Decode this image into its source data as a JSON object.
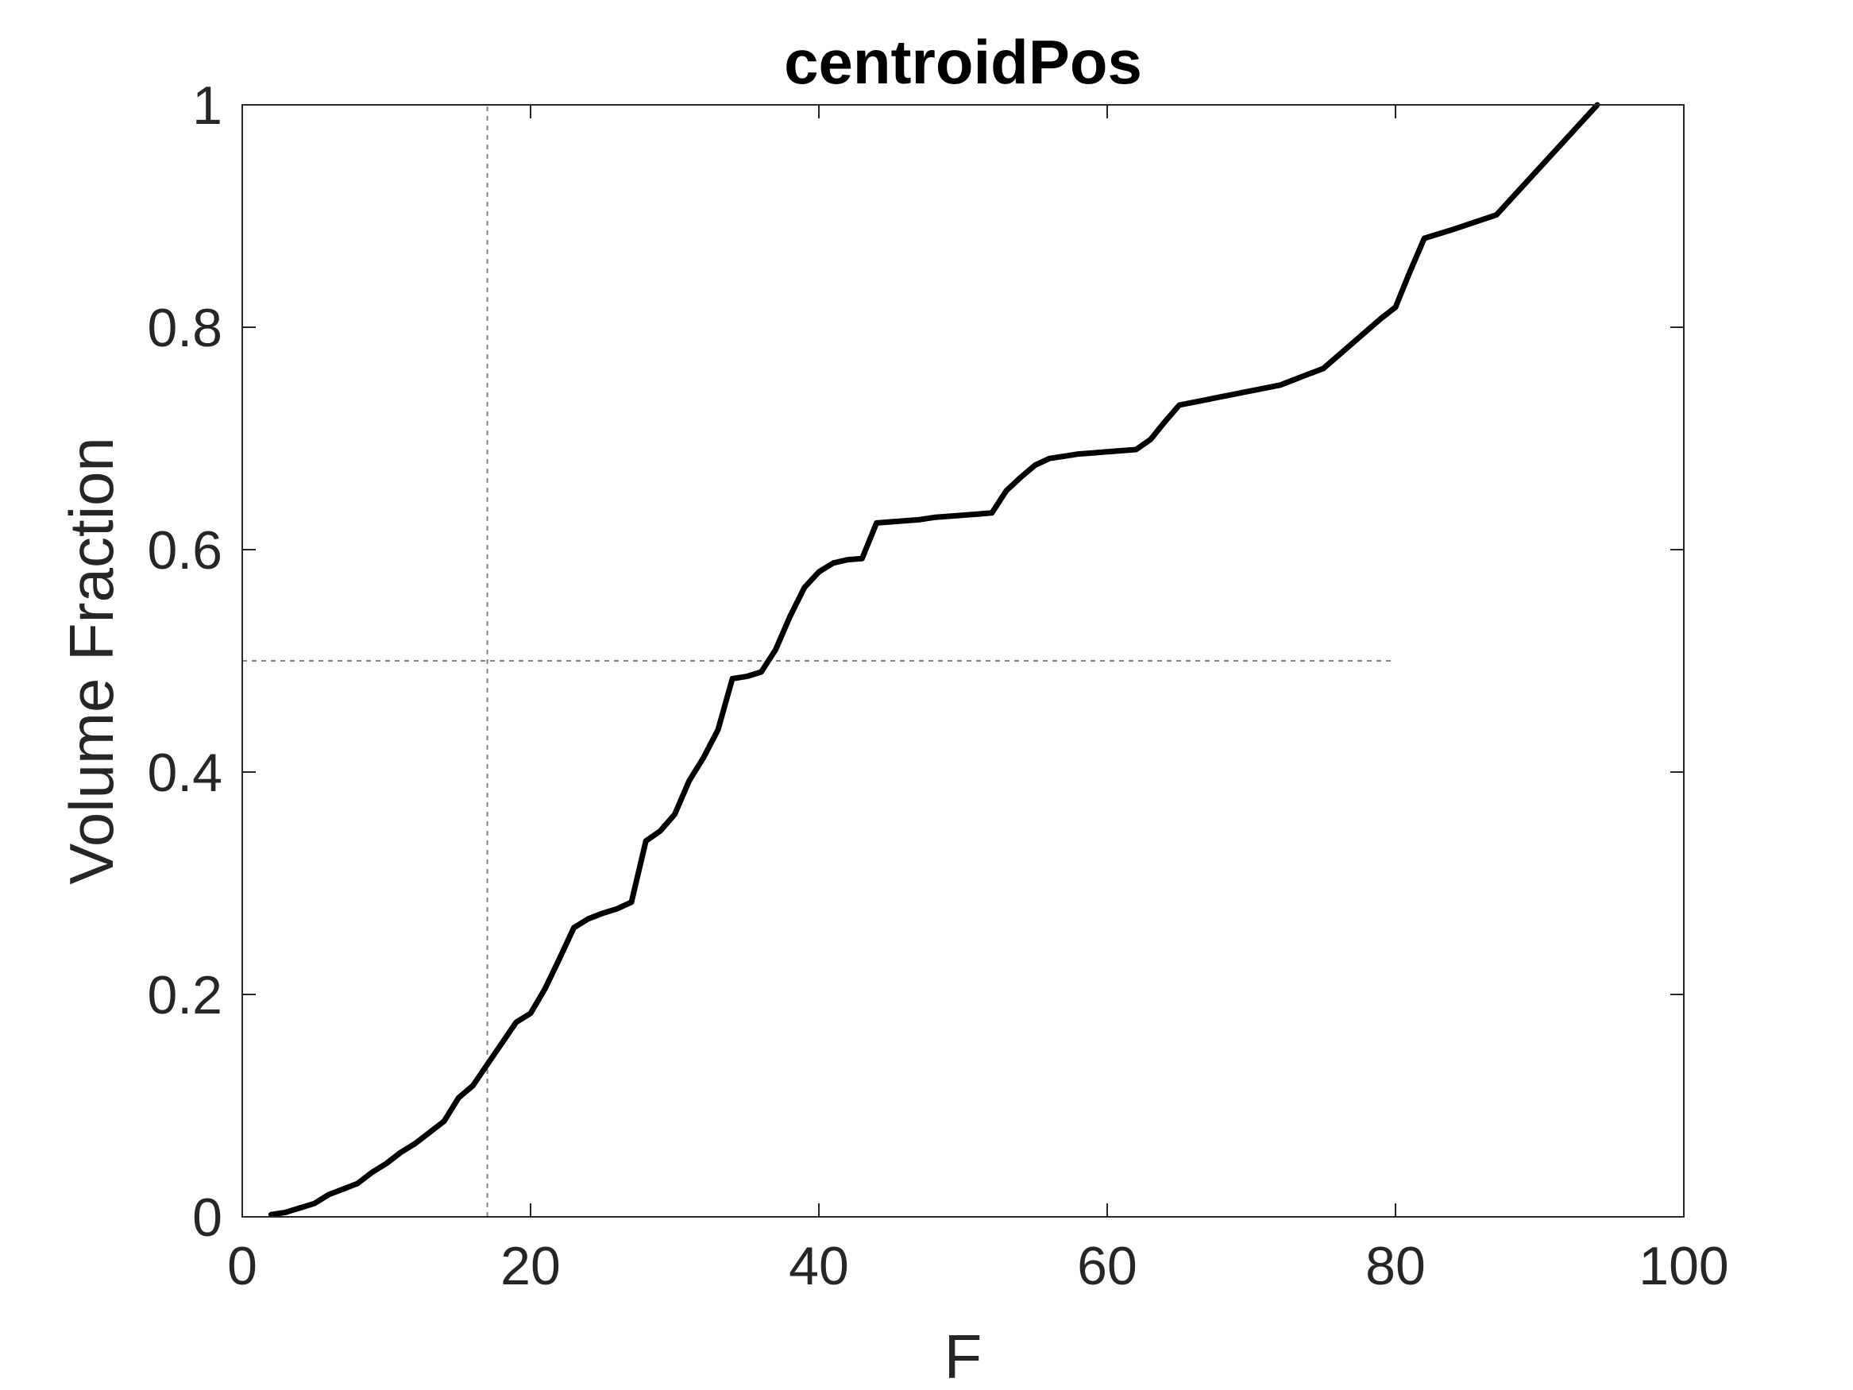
{
  "chart_data": {
    "type": "line",
    "title": "centroidPos",
    "xlabel": "F",
    "ylabel": "Volume Fraction",
    "xlim": [
      0,
      100
    ],
    "ylim": [
      0,
      1
    ],
    "xticks": [
      0,
      20,
      40,
      60,
      80,
      100
    ],
    "yticks": [
      0,
      0.2,
      0.4,
      0.6,
      0.8,
      1
    ],
    "xtick_labels": [
      "0",
      "20",
      "40",
      "60",
      "80",
      "100"
    ],
    "ytick_labels": [
      "0",
      "0.2",
      "0.4",
      "0.6",
      "0.8",
      "1"
    ],
    "grid": false,
    "series": [
      {
        "color": "#000000",
        "x": [
          2,
          3,
          5,
          6,
          7,
          8,
          9,
          10,
          11,
          12,
          13,
          14,
          15,
          16,
          17,
          18,
          19,
          20,
          21,
          22,
          23,
          24,
          25,
          26,
          27,
          28,
          29,
          30,
          31,
          32,
          33,
          34,
          35,
          36,
          37,
          38,
          39,
          40,
          41,
          42,
          43,
          44,
          45,
          46,
          47,
          48,
          49,
          50,
          51,
          52,
          53,
          54,
          55,
          56,
          57,
          58,
          59,
          60,
          61,
          62,
          63,
          64,
          65,
          72,
          75,
          79,
          80,
          81,
          82,
          84,
          87,
          94
        ],
        "y": [
          0.002,
          0.004,
          0.012,
          0.02,
          0.025,
          0.03,
          0.04,
          0.048,
          0.058,
          0.066,
          0.076,
          0.086,
          0.107,
          0.118,
          0.137,
          0.156,
          0.175,
          0.183,
          0.205,
          0.232,
          0.26,
          0.268,
          0.273,
          0.277,
          0.283,
          0.338,
          0.347,
          0.362,
          0.392,
          0.413,
          0.438,
          0.484,
          0.486,
          0.49,
          0.51,
          0.54,
          0.566,
          0.58,
          0.588,
          0.591,
          0.592,
          0.624,
          0.625,
          0.626,
          0.627,
          0.629,
          0.63,
          0.631,
          0.632,
          0.633,
          0.653,
          0.665,
          0.676,
          0.682,
          0.684,
          0.686,
          0.687,
          0.688,
          0.689,
          0.69,
          0.699,
          0.715,
          0.73,
          0.748,
          0.763,
          0.808,
          0.818,
          0.85,
          0.88,
          0.888,
          0.901,
          1.0
        ]
      }
    ],
    "reference_lines": [
      {
        "orientation": "vertical",
        "x": 17,
        "y_range": [
          0,
          1
        ],
        "style": "dashed",
        "color": "#808080"
      },
      {
        "orientation": "horizontal",
        "y": 0.5,
        "x_range": [
          0,
          80
        ],
        "style": "dashed",
        "color": "#808080"
      }
    ]
  }
}
